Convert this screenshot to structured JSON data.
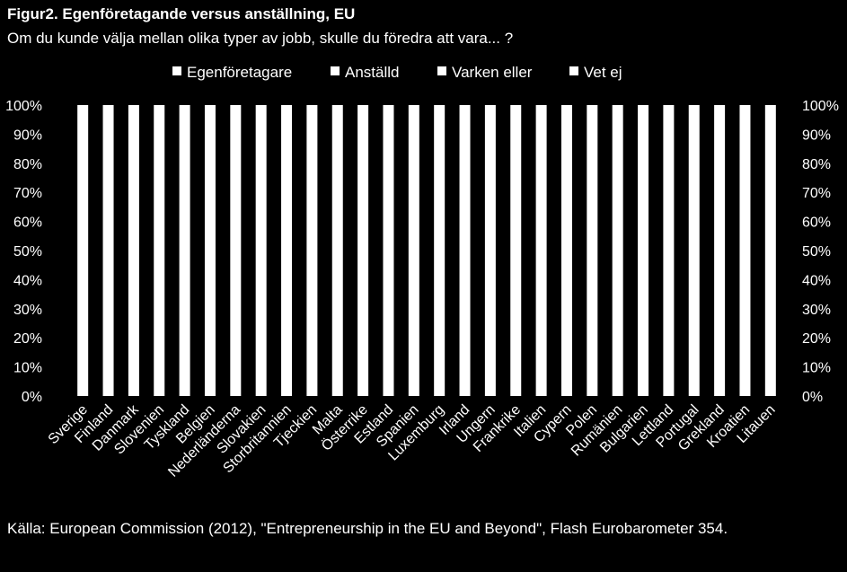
{
  "chart_data": {
    "type": "bar",
    "stacked": true,
    "title": "Figur2. Egenföretagande versus anställning, EU",
    "subtitle": "Om du kunde välja mellan olika typer av jobb, skulle du föredra att vara... ?",
    "categories": [
      "Sverige",
      "Finland",
      "Danmark",
      "Slovenien",
      "Tyskland",
      "Belgien",
      "Nederländerna",
      "Slovakien",
      "Storbritannien",
      "Tjeckien",
      "Malta",
      "Österrike",
      "Estland",
      "Spanien",
      "Luxemburg",
      "Irland",
      "Ungern",
      "Frankrike",
      "Italien",
      "Cypern",
      "Polen",
      "Rumänien",
      "Bulgarien",
      "Lettland",
      "Portugal",
      "Grekland",
      "Kroatien",
      "Litauen"
    ],
    "series": [
      {
        "name": "Egenföretagare",
        "color": "#ffffff"
      },
      {
        "name": "Anställd",
        "color": "#ffffff"
      },
      {
        "name": "Varken eller",
        "color": "#ffffff"
      },
      {
        "name": "Vet ej",
        "color": "#ffffff"
      }
    ],
    "bar_total": 100,
    "yticks": [
      "0%",
      "10%",
      "20%",
      "30%",
      "40%",
      "50%",
      "60%",
      "70%",
      "80%",
      "90%",
      "100%"
    ],
    "ylim": [
      0,
      100
    ],
    "secondary_axis": true,
    "legend_position": "top",
    "grid": false
  },
  "source": "Källa: European Commission (2012), \"Entrepreneurship in the EU and Beyond\", Flash Eurobarometer 354."
}
